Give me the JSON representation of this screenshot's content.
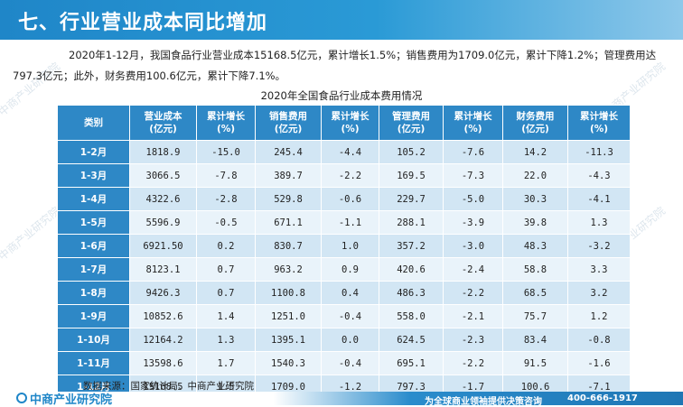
{
  "header": {
    "title": "七、行业营业成本同比增加"
  },
  "intro": "2020年1-12月，我国食品行业营业成本15168.5亿元，累计增长1.5%；销售费用为1709.0亿元，累计下降1.2%；管理费用达797.3亿元；此外，财务费用100.6亿元，累计下降7.1%。",
  "table": {
    "title": "2020年全国食品行业成本费用情况",
    "headers": [
      [
        "类别"
      ],
      [
        "营业成本",
        "(亿元)"
      ],
      [
        "累计增长",
        "(%)"
      ],
      [
        "销售费用",
        "(亿元)"
      ],
      [
        "累计增长",
        "(%)"
      ],
      [
        "管理费用",
        "(亿元)"
      ],
      [
        "累计增长",
        "(%)"
      ],
      [
        "财务费用",
        "(亿元)"
      ],
      [
        "累计增长",
        "(%)"
      ]
    ],
    "rows": [
      [
        "1-2月",
        "1818.9",
        "-15.0",
        "245.4",
        "-4.4",
        "105.2",
        "-7.6",
        "14.2",
        "-11.3"
      ],
      [
        "1-3月",
        "3066.5",
        "-7.8",
        "389.7",
        "-2.2",
        "169.5",
        "-7.3",
        "22.0",
        "-4.3"
      ],
      [
        "1-4月",
        "4322.6",
        "-2.8",
        "529.8",
        "-0.6",
        "229.7",
        "-5.0",
        "30.3",
        "-4.1"
      ],
      [
        "1-5月",
        "5596.9",
        "-0.5",
        "671.1",
        "-1.1",
        "288.1",
        "-3.9",
        "39.8",
        "1.3"
      ],
      [
        "1-6月",
        "6921.50",
        "0.2",
        "830.7",
        "1.0",
        "357.2",
        "-3.0",
        "48.3",
        "-3.2"
      ],
      [
        "1-7月",
        "8123.1",
        "0.7",
        "963.2",
        "0.9",
        "420.6",
        "-2.4",
        "58.8",
        "3.3"
      ],
      [
        "1-8月",
        "9426.3",
        "0.7",
        "1100.8",
        "0.4",
        "486.3",
        "-2.2",
        "68.5",
        "3.2"
      ],
      [
        "1-9月",
        "10852.6",
        "1.4",
        "1251.0",
        "-0.4",
        "558.0",
        "-2.1",
        "75.7",
        "1.2"
      ],
      [
        "1-10月",
        "12164.2",
        "1.3",
        "1395.1",
        "0.0",
        "624.5",
        "-2.3",
        "83.4",
        "-0.8"
      ],
      [
        "1-11月",
        "13598.6",
        "1.7",
        "1540.3",
        "-0.4",
        "695.1",
        "-2.2",
        "91.5",
        "-1.6"
      ],
      [
        "1-12月",
        "15168.5",
        "1.5",
        "1709.0",
        "-1.2",
        "797.3",
        "-1.7",
        "100.6",
        "-7.1"
      ]
    ]
  },
  "source": "数据来源：国家统计局、中商产业研究院",
  "footer": {
    "logo_text": "中商产业研究院",
    "slogan": "为全球商业领袖提供决策咨询",
    "phone": "400-666-1917"
  },
  "watermark": "中商产业研究院",
  "colors": {
    "header": "#1f86c8",
    "table_header": "#2e88c6",
    "row_alt": "#d2e6f4",
    "row_plain": "#e9f3fa"
  }
}
